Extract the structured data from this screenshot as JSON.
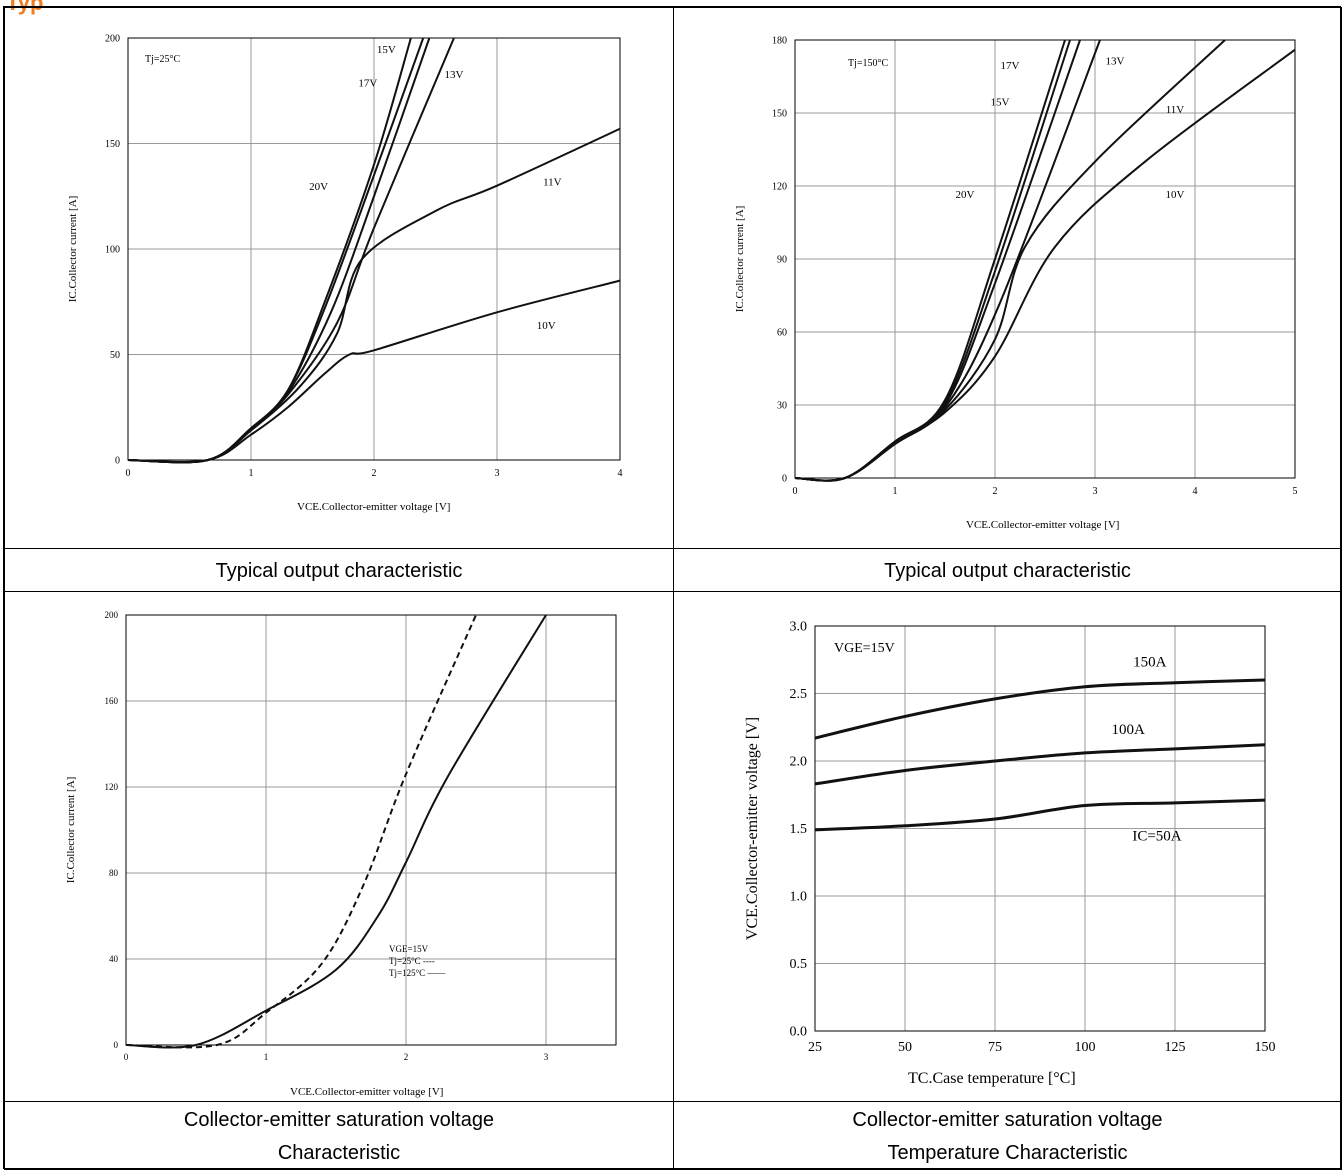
{
  "header": {
    "title": "Typ"
  },
  "captions": {
    "c1": "Typical output characteristic",
    "c2": "Typical output characteristic",
    "c3a": "Collector-emitter saturation voltage",
    "c3b": "Characteristic",
    "c4a": "Collector-emitter saturation voltage",
    "c4b": "Temperature Characteristic"
  },
  "chart_data": [
    {
      "type": "line",
      "xlabel": "VCE.Collector-emitter voltage [V]",
      "ylabel": "IC.Collector current [A]",
      "xlim": [
        0,
        4
      ],
      "ylim": [
        0,
        200
      ],
      "xticks": [
        "0",
        "1",
        "2",
        "3",
        "4"
      ],
      "yticks": [
        "0",
        "50",
        "100",
        "150",
        "200"
      ],
      "annotation": "Tj=25°C",
      "grid": true,
      "series": [
        {
          "name": "20V",
          "points": [
            [
              0,
              0
            ],
            [
              0.65,
              0
            ],
            [
              1,
              15
            ],
            [
              1.3,
              33
            ],
            [
              1.6,
              75
            ],
            [
              2,
              140
            ],
            [
              2.3,
              200
            ]
          ]
        },
        {
          "name": "17V",
          "points": [
            [
              0,
              0
            ],
            [
              0.65,
              0
            ],
            [
              1,
              15
            ],
            [
              1.3,
              33
            ],
            [
              1.6,
              72
            ],
            [
              2,
              135
            ],
            [
              2.4,
              200
            ]
          ]
        },
        {
          "name": "15V",
          "points": [
            [
              0,
              0
            ],
            [
              0.65,
              0
            ],
            [
              1,
              15
            ],
            [
              1.3,
              32
            ],
            [
              1.65,
              70
            ],
            [
              2,
              125
            ],
            [
              2.45,
              200
            ]
          ]
        },
        {
          "name": "13V",
          "points": [
            [
              0,
              0
            ],
            [
              0.65,
              0
            ],
            [
              1,
              15
            ],
            [
              1.3,
              31
            ],
            [
              1.7,
              65
            ],
            [
              2,
              110
            ],
            [
              2.65,
              200
            ]
          ]
        },
        {
          "name": "11V",
          "points": [
            [
              0,
              0
            ],
            [
              0.65,
              0
            ],
            [
              1,
              14
            ],
            [
              1.4,
              35
            ],
            [
              1.7,
              60
            ],
            [
              1.9,
              95
            ],
            [
              2.5,
              118
            ],
            [
              3,
              130
            ],
            [
              4,
              157
            ]
          ]
        },
        {
          "name": "10V",
          "points": [
            [
              0,
              0
            ],
            [
              0.65,
              0
            ],
            [
              1,
              12
            ],
            [
              1.3,
              25
            ],
            [
              1.6,
              41
            ],
            [
              1.8,
              50
            ],
            [
              2,
              52
            ],
            [
              3,
              70
            ],
            [
              4,
              85
            ]
          ]
        }
      ]
    },
    {
      "type": "line",
      "xlabel": "VCE.Collector-emitter voltage [V]",
      "ylabel": "IC.Collector current [A]",
      "xlim": [
        0,
        5
      ],
      "ylim": [
        0,
        180
      ],
      "xticks": [
        "0",
        "1",
        "2",
        "3",
        "4",
        "5"
      ],
      "yticks": [
        "0",
        "30",
        "60",
        "90",
        "120",
        "150",
        "180"
      ],
      "annotation": "Tj=150°C",
      "grid": true,
      "series": [
        {
          "name": "20V",
          "points": [
            [
              0,
              0
            ],
            [
              0.5,
              0
            ],
            [
              1,
              15
            ],
            [
              1.5,
              32
            ],
            [
              2,
              90
            ],
            [
              2.7,
              180
            ]
          ]
        },
        {
          "name": "17V",
          "points": [
            [
              0,
              0
            ],
            [
              0.5,
              0
            ],
            [
              1,
              15
            ],
            [
              1.5,
              31
            ],
            [
              2,
              85
            ],
            [
              2.75,
              180
            ]
          ]
        },
        {
          "name": "15V",
          "points": [
            [
              0,
              0
            ],
            [
              0.5,
              0
            ],
            [
              1,
              15
            ],
            [
              1.5,
              30
            ],
            [
              2,
              80
            ],
            [
              2.85,
              180
            ]
          ]
        },
        {
          "name": "13V",
          "points": [
            [
              0,
              0
            ],
            [
              0.5,
              0
            ],
            [
              1,
              14
            ],
            [
              1.5,
              29
            ],
            [
              2.05,
              72
            ],
            [
              3.05,
              180
            ]
          ]
        },
        {
          "name": "11V",
          "points": [
            [
              0,
              0
            ],
            [
              0.5,
              0
            ],
            [
              1,
              14
            ],
            [
              1.5,
              28
            ],
            [
              2,
              57
            ],
            [
              2.3,
              95
            ],
            [
              3,
              130
            ],
            [
              4.3,
              180
            ]
          ]
        },
        {
          "name": "10V",
          "points": [
            [
              0,
              0
            ],
            [
              0.5,
              0
            ],
            [
              1,
              14
            ],
            [
              1.5,
              27
            ],
            [
              2,
              50
            ],
            [
              2.6,
              95
            ],
            [
              3.5,
              130
            ],
            [
              5,
              176
            ]
          ]
        }
      ]
    },
    {
      "type": "line",
      "xlabel": "VCE.Collector-emitter voltage [V]",
      "ylabel": "IC.Collector current [A]",
      "xlim": [
        0,
        3.5
      ],
      "ylim": [
        0,
        200
      ],
      "xticks": [
        "0",
        "1",
        "2",
        "3"
      ],
      "yticks": [
        "0",
        "40",
        "80",
        "120",
        "160",
        "200"
      ],
      "legend": [
        "VGE=15V",
        "Tj=25°C ----",
        "Tj=125°C ——"
      ],
      "grid": true,
      "series": [
        {
          "name": "Tj=25°C",
          "dash": true,
          "points": [
            [
              0,
              0
            ],
            [
              0.65,
              0
            ],
            [
              1,
              15
            ],
            [
              1.4,
              38
            ],
            [
              1.7,
              75
            ],
            [
              2,
              126
            ],
            [
              2.5,
              200
            ]
          ]
        },
        {
          "name": "Tj=125°C",
          "dash": false,
          "points": [
            [
              0,
              0
            ],
            [
              0.5,
              0
            ],
            [
              1,
              16
            ],
            [
              1.5,
              35
            ],
            [
              1.8,
              60
            ],
            [
              2,
              85
            ],
            [
              2.3,
              125
            ],
            [
              3,
              200
            ]
          ]
        }
      ]
    },
    {
      "type": "line",
      "xlabel": "TC.Case temperature [°C]",
      "ylabel": "VCE.Collector-emitter voltage [V]",
      "xlim": [
        25,
        150
      ],
      "ylim": [
        0,
        3.0
      ],
      "xticks": [
        "25",
        "50",
        "75",
        "100",
        "125",
        "150"
      ],
      "yticks": [
        "0.0",
        "0.5",
        "1.0",
        "1.5",
        "2.0",
        "2.5",
        "3.0"
      ],
      "annotation": "VGE=15V",
      "grid": true,
      "series": [
        {
          "name": "150A",
          "points": [
            [
              25,
              2.17
            ],
            [
              50,
              2.33
            ],
            [
              75,
              2.46
            ],
            [
              100,
              2.55
            ],
            [
              125,
              2.58
            ],
            [
              150,
              2.6
            ]
          ]
        },
        {
          "name": "100A",
          "points": [
            [
              25,
              1.83
            ],
            [
              50,
              1.93
            ],
            [
              75,
              2.0
            ],
            [
              100,
              2.06
            ],
            [
              125,
              2.09
            ],
            [
              150,
              2.12
            ]
          ]
        },
        {
          "name": "IC=50A",
          "points": [
            [
              25,
              1.49
            ],
            [
              50,
              1.52
            ],
            [
              75,
              1.57
            ],
            [
              100,
              1.67
            ],
            [
              125,
              1.69
            ],
            [
              150,
              1.71
            ]
          ]
        }
      ]
    }
  ]
}
